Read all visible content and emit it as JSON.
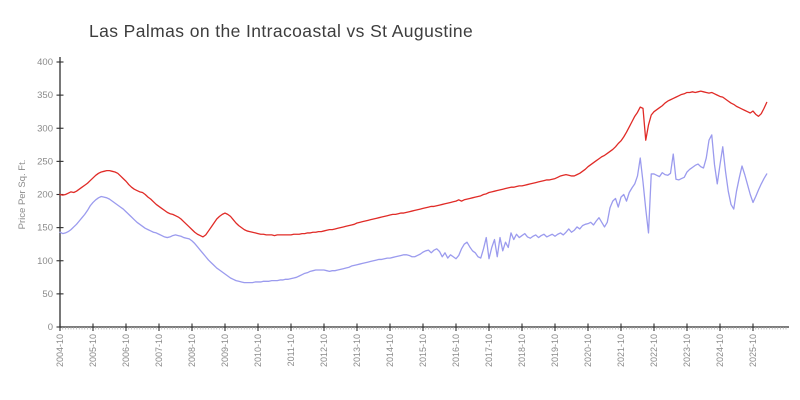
{
  "title": "Las Palmas on the Intracoastal vs St Augustine",
  "y_axis": {
    "label": "Price Per Sq. Ft.",
    "ticks": [
      0,
      50,
      100,
      150,
      200,
      250,
      300,
      350,
      400
    ],
    "min": 0,
    "max": 400
  },
  "x_axis": {
    "tick_labels": [
      "2004-10",
      "2005-10",
      "2006-10",
      "2007-10",
      "2008-10",
      "2009-10",
      "2010-10",
      "2011-10",
      "2012-10",
      "2013-10",
      "2014-10",
      "2015-10",
      "2016-10",
      "2017-10",
      "2018-10",
      "2019-10",
      "2020-10",
      "2021-10",
      "2022-10",
      "2023-10",
      "2024-10",
      "2025-10"
    ],
    "minor_tick_unit": "month"
  },
  "chart_data": {
    "type": "line",
    "title": "Las Palmas on the Intracoastal vs St Augustine",
    "xlabel": "",
    "ylabel": "Price Per Sq. Ft.",
    "ylim": [
      0,
      400
    ],
    "grid": false,
    "legend": "none",
    "x_start": "2004-10",
    "x_step": "1 month",
    "series": [
      {
        "name": "red",
        "color": "#e02b27",
        "values": [
          200,
          199,
          200,
          202,
          204,
          203,
          205,
          208,
          211,
          214,
          217,
          221,
          225,
          229,
          232,
          234,
          235,
          236,
          236,
          235,
          234,
          232,
          228,
          224,
          220,
          215,
          211,
          208,
          206,
          204,
          203,
          200,
          196,
          193,
          189,
          185,
          182,
          179,
          176,
          173,
          171,
          170,
          168,
          166,
          163,
          159,
          155,
          151,
          147,
          143,
          140,
          138,
          136,
          139,
          145,
          151,
          157,
          163,
          167,
          170,
          172,
          170,
          167,
          162,
          157,
          153,
          150,
          147,
          145,
          144,
          143,
          142,
          141,
          140,
          140,
          139,
          139,
          139,
          138,
          139,
          139,
          139,
          139,
          139,
          139,
          140,
          140,
          140,
          141,
          141,
          142,
          142,
          143,
          143,
          144,
          144,
          145,
          146,
          147,
          147,
          148,
          149,
          150,
          151,
          152,
          153,
          154,
          155,
          157,
          158,
          159,
          160,
          161,
          162,
          163,
          164,
          165,
          166,
          167,
          168,
          169,
          170,
          170,
          171,
          172,
          172,
          173,
          174,
          175,
          176,
          177,
          178,
          179,
          180,
          181,
          182,
          182,
          183,
          184,
          185,
          186,
          187,
          188,
          189,
          190,
          192,
          190,
          192,
          193,
          194,
          195,
          196,
          197,
          198,
          200,
          201,
          203,
          204,
          205,
          206,
          207,
          208,
          209,
          210,
          211,
          211,
          212,
          213,
          213,
          214,
          215,
          216,
          217,
          218,
          219,
          220,
          221,
          222,
          222,
          223,
          224,
          226,
          228,
          229,
          230,
          229,
          228,
          228,
          230,
          232,
          235,
          238,
          242,
          245,
          248,
          251,
          254,
          257,
          259,
          262,
          265,
          268,
          272,
          277,
          281,
          287,
          294,
          302,
          310,
          318,
          324,
          332,
          330,
          282,
          305,
          320,
          325,
          328,
          331,
          334,
          338,
          341,
          343,
          345,
          347,
          349,
          351,
          352,
          354,
          354,
          355,
          354,
          355,
          356,
          355,
          354,
          353,
          354,
          352,
          350,
          348,
          347,
          344,
          341,
          338,
          336,
          333,
          331,
          329,
          327,
          325,
          323,
          326,
          321,
          318,
          322,
          330,
          339
        ]
      },
      {
        "name": "blue",
        "color": "#9b9bee",
        "values": [
          143,
          141,
          142,
          144,
          147,
          151,
          155,
          160,
          165,
          170,
          176,
          183,
          188,
          192,
          195,
          197,
          196,
          195,
          193,
          190,
          187,
          184,
          181,
          178,
          174,
          170,
          166,
          162,
          158,
          155,
          152,
          149,
          147,
          145,
          143,
          142,
          140,
          138,
          136,
          135,
          136,
          138,
          139,
          138,
          137,
          135,
          134,
          133,
          130,
          126,
          121,
          116,
          111,
          106,
          101,
          97,
          93,
          89,
          86,
          83,
          80,
          77,
          74,
          72,
          70,
          69,
          68,
          67,
          67,
          67,
          67,
          68,
          68,
          68,
          69,
          69,
          69,
          70,
          70,
          70,
          71,
          71,
          72,
          72,
          73,
          74,
          75,
          77,
          79,
          81,
          82,
          84,
          85,
          86,
          86,
          86,
          86,
          85,
          84,
          85,
          85,
          86,
          87,
          88,
          89,
          90,
          92,
          93,
          94,
          95,
          96,
          97,
          98,
          99,
          100,
          101,
          102,
          102,
          103,
          104,
          104,
          105,
          106,
          107,
          108,
          109,
          109,
          108,
          106,
          106,
          108,
          110,
          113,
          115,
          116,
          112,
          116,
          118,
          114,
          106,
          112,
          104,
          109,
          106,
          103,
          108,
          118,
          125,
          128,
          121,
          115,
          112,
          106,
          104,
          118,
          135,
          103,
          120,
          132,
          106,
          135,
          115,
          128,
          120,
          142,
          132,
          140,
          135,
          138,
          141,
          136,
          134,
          137,
          139,
          135,
          138,
          140,
          136,
          138,
          140,
          137,
          140,
          142,
          139,
          143,
          148,
          143,
          146,
          151,
          148,
          153,
          155,
          156,
          158,
          154,
          160,
          165,
          158,
          151,
          158,
          180,
          190,
          194,
          181,
          196,
          200,
          190,
          203,
          210,
          216,
          228,
          255,
          219,
          178,
          142,
          231,
          231,
          229,
          227,
          233,
          230,
          229,
          232,
          261,
          223,
          222,
          224,
          226,
          234,
          238,
          241,
          244,
          246,
          242,
          240,
          255,
          282,
          290,
          245,
          216,
          245,
          272,
          235,
          205,
          185,
          178,
          205,
          225,
          243,
          230,
          215,
          200,
          188,
          197,
          207,
          216,
          224,
          231
        ]
      }
    ]
  },
  "colors": {
    "axis": "#2f2f2f",
    "tick_label": "#8a8a8a",
    "title_text": "#3d3d3d"
  }
}
